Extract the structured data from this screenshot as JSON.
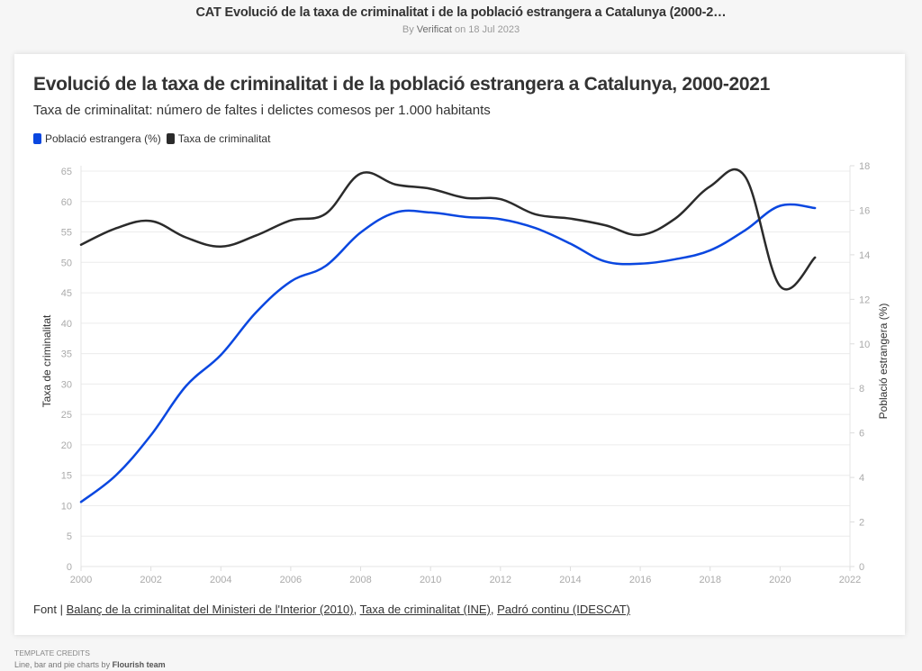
{
  "page": {
    "title": "CAT Evolució de la taxa de criminalitat i de la població estrangera a Catalunya (2000-2…",
    "byline_prefix": "By",
    "author": "Verificat",
    "byline_suffix": "on 18 Jul 2023"
  },
  "source": {
    "prefix": "Font |",
    "links": [
      "Balanç de la criminalitat del Ministeri de l'Interior (2010)",
      "Taxa de criminalitat (INE)",
      "Padró continu (IDESCAT)"
    ],
    "separator": ","
  },
  "credits": {
    "label": "Template credits",
    "text": "Line, bar and pie charts by",
    "team": "Flourish team"
  },
  "chart_data": {
    "type": "line",
    "title": "Evolució de la taxa de criminalitat i de la població estrangera a Catalunya, 2000-2021",
    "subtitle": "Taxa de criminalitat: número de faltes i delictes comesos per 1.000 habitants",
    "xlabel": "",
    "ylabel": "Taxa de criminalitat",
    "y2label": "Població estrangera (%)",
    "xlim": [
      2000,
      2022
    ],
    "ylim": [
      0,
      65
    ],
    "y2lim": [
      0,
      18
    ],
    "x_ticks": [
      "2000",
      "2002",
      "2004",
      "2006",
      "2008",
      "2010",
      "2012",
      "2014",
      "2016",
      "2018",
      "2020",
      "2022"
    ],
    "y_ticks": [
      "0",
      "5",
      "10",
      "15",
      "20",
      "25",
      "30",
      "35",
      "40",
      "45",
      "50",
      "55",
      "60",
      "65"
    ],
    "y2_ticks": [
      "0",
      "2",
      "4",
      "6",
      "8",
      "10",
      "12",
      "14",
      "16",
      "18"
    ],
    "grid": true,
    "legend_position": "top-left",
    "x": [
      2000,
      2001,
      2002,
      2003,
      2004,
      2005,
      2006,
      2007,
      2008,
      2009,
      2010,
      2011,
      2012,
      2013,
      2014,
      2015,
      2016,
      2017,
      2018,
      2019,
      2020,
      2021
    ],
    "series": [
      {
        "name": "Població estrangera (%)",
        "axis": "right",
        "color": "#0a47e0",
        "values": [
          2.9,
          4.1,
          5.9,
          8.1,
          9.5,
          11.4,
          12.8,
          13.5,
          15.0,
          15.9,
          15.9,
          15.7,
          15.6,
          15.2,
          14.5,
          13.7,
          13.6,
          13.8,
          14.2,
          15.1,
          16.2,
          16.1
        ]
      },
      {
        "name": "Taxa de criminalitat",
        "axis": "left",
        "color": "#2b2b2b",
        "values": [
          52.9,
          55.6,
          56.8,
          54.1,
          52.6,
          54.4,
          56.9,
          58.0,
          64.6,
          62.8,
          62.1,
          60.6,
          60.4,
          57.9,
          57.2,
          56.1,
          54.5,
          57.2,
          62.5,
          64.1,
          46.1,
          50.8
        ]
      }
    ]
  }
}
